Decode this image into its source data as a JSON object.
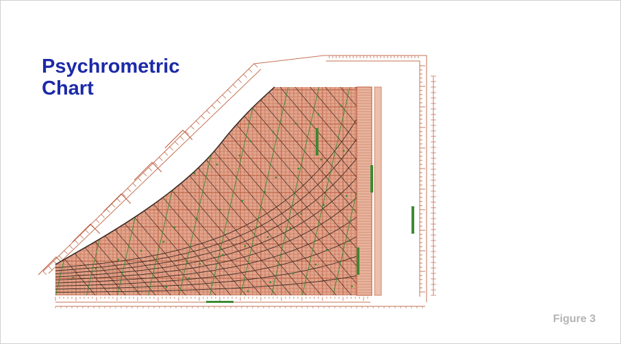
{
  "slide": {
    "title_line1": "Psychrometric",
    "title_line2": "Chart",
    "figure_label": "Figure 3"
  },
  "colors": {
    "title": "#1c2aa8",
    "figure_label": "#b4b4b4",
    "chart_fill": "#e2a48c",
    "chart_grid_red": "#b8583a",
    "chart_grid_green": "#3c8a34",
    "chart_dark": "#3a2a22"
  },
  "chart": {
    "image_kind": "psychrometric-chart-illustration"
  }
}
